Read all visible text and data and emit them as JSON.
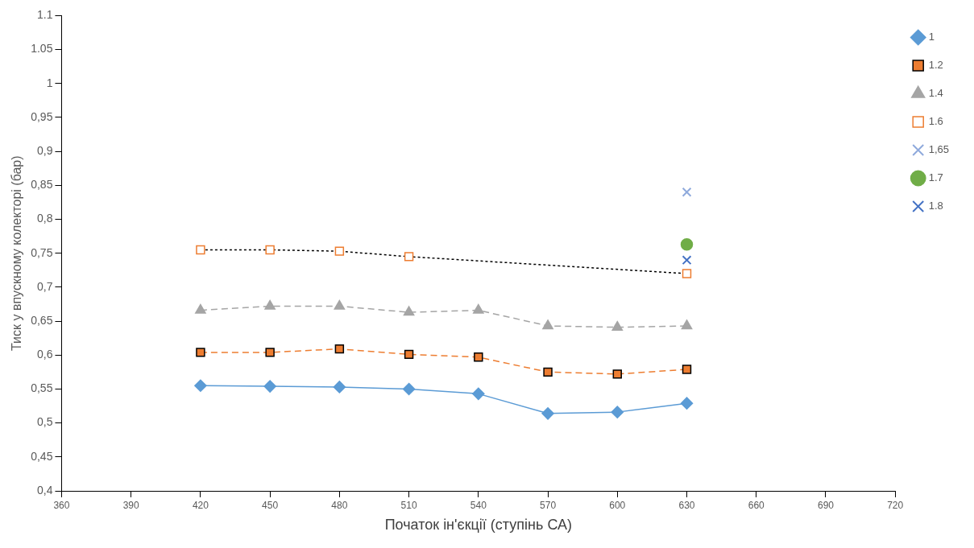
{
  "chart_data": {
    "type": "line",
    "xlabel": "Початок ін'єкції (ступінь СА)",
    "ylabel": "Тиск у впускному колекторі (бар)",
    "xlim": [
      360,
      720
    ],
    "xticks": [
      360,
      390,
      420,
      450,
      480,
      510,
      540,
      570,
      600,
      630,
      660,
      690,
      720
    ],
    "ylim": [
      0.4,
      1.1
    ],
    "yticks": [
      {
        "value": 0.4,
        "label": "0,4"
      },
      {
        "value": 0.45,
        "label": "0,45"
      },
      {
        "value": 0.5,
        "label": "0,5"
      },
      {
        "value": 0.55,
        "label": "0,55"
      },
      {
        "value": 0.6,
        "label": "0,6"
      },
      {
        "value": 0.65,
        "label": "0,65"
      },
      {
        "value": 0.7,
        "label": "0,7"
      },
      {
        "value": 0.75,
        "label": "0,75"
      },
      {
        "value": 0.8,
        "label": "0,8"
      },
      {
        "value": 0.85,
        "label": "0,85"
      },
      {
        "value": 0.9,
        "label": "0,9"
      },
      {
        "value": 0.95,
        "label": "0,95"
      },
      1,
      1.05,
      1.1
    ],
    "grid": false,
    "legend": "right",
    "x": [
      420,
      450,
      480,
      510,
      540,
      570,
      600,
      630
    ],
    "series": [
      {
        "name": "1",
        "color": "#5b9bd5",
        "marker": "diamond",
        "line_style": "solid",
        "values": [
          0.555,
          0.554,
          0.553,
          0.55,
          0.543,
          0.514,
          0.516,
          0.529
        ]
      },
      {
        "name": "1.2",
        "color": "#ed7d31",
        "marker": "square",
        "line_style": "dashed",
        "values": [
          0.604,
          0.604,
          0.609,
          0.601,
          0.597,
          0.575,
          0.572,
          0.579
        ]
      },
      {
        "name": "1.4",
        "color": "#a5a5a5",
        "marker": "triangle",
        "line_style": "dashed",
        "values": [
          0.666,
          0.672,
          0.672,
          0.663,
          0.666,
          0.643,
          0.641,
          0.643
        ]
      },
      {
        "name": "1.6",
        "color": "#000000",
        "colors": [
          "#ed7d31",
          "#ed7d31",
          "#ed7d31",
          "#ed7d31",
          "#ed7d31"
        ],
        "marker": "square",
        "line_style": "dotted",
        "x": [
          420,
          450,
          480,
          510,
          630
        ],
        "values": [
          0.755,
          0.755,
          0.753,
          0.745,
          0.72
        ]
      },
      {
        "name": "1,65",
        "color": "#8faadc",
        "marker": "cross",
        "line_style": "dashed",
        "x": [
          630
        ],
        "values": [
          0.84
        ]
      },
      {
        "name": "1.7",
        "color": "#70ad47",
        "marker": "circle",
        "line_style": "solid",
        "x": [
          630
        ],
        "values": [
          0.763
        ]
      },
      {
        "name": "1.8",
        "color": "#4472c4",
        "marker": "cross",
        "line_style": "solid",
        "x": [
          630
        ],
        "values": [
          0.74
        ]
      }
    ]
  }
}
